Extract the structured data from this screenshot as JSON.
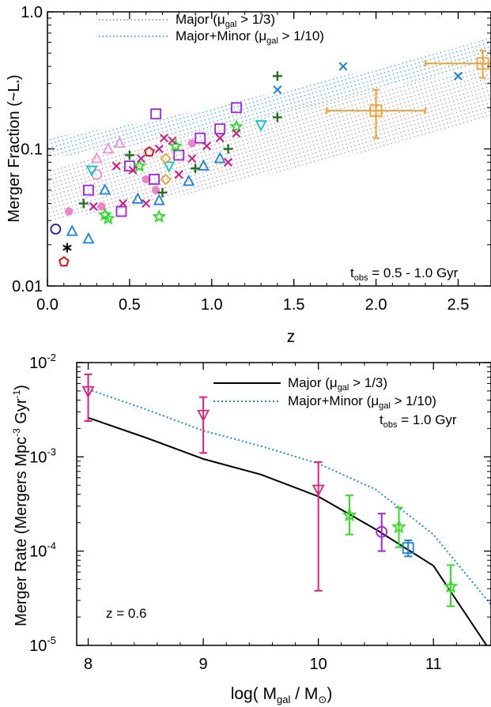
{
  "chart_data": [
    {
      "type": "scatter",
      "ylabel": "Merger Fraction (~L*)",
      "xlabel": "z",
      "yscale": "log",
      "xlim": [
        0,
        2.7
      ],
      "ylim": [
        0.01,
        1.0
      ],
      "xticks": [
        "0.0",
        "0.5",
        "1.0",
        "1.5",
        "2.0",
        "2.5"
      ],
      "yticks": [
        "0.01",
        "0.1",
        "1.0"
      ],
      "legend": [
        {
          "label": "Major (μgal > 1/3)",
          "style": "gray-dotted"
        },
        {
          "label": "Major+Minor (μgal > 1/10)",
          "style": "blue-dotted"
        }
      ],
      "legend_placement": "top-left",
      "annotation": "tobs = 0.5 - 1.0 Gyr",
      "bands": [
        {
          "name": "Major (μgal > 1/3)",
          "color": "#909090",
          "x": [
            0,
            0.5,
            1.0,
            1.5,
            2.0,
            2.5,
            2.7
          ],
          "lower": [
            0.03,
            0.037,
            0.052,
            0.072,
            0.1,
            0.145,
            0.17
          ],
          "upper": [
            0.07,
            0.1,
            0.14,
            0.2,
            0.27,
            0.36,
            0.4
          ]
        },
        {
          "name": "Major+Minor (μgal > 1/10)",
          "color": "#1f8ad6",
          "x": [
            0,
            0.5,
            1.0,
            1.5,
            2.0,
            2.5,
            2.7
          ],
          "lower": [
            0.085,
            0.105,
            0.14,
            0.19,
            0.27,
            0.37,
            0.42
          ],
          "upper": [
            0.12,
            0.15,
            0.2,
            0.28,
            0.39,
            0.55,
            0.65
          ]
        }
      ],
      "points": [
        {
          "marker": "circle",
          "color": "#1a1ab0",
          "x": 0.05,
          "y": 0.026
        },
        {
          "marker": "asterisk",
          "color": "#000000",
          "x": 0.12,
          "y": 0.019
        },
        {
          "marker": "pentagon",
          "color": "#e00000",
          "x": 0.1,
          "y": 0.015
        },
        {
          "marker": "dot",
          "color": "#f080c8",
          "x": 0.13,
          "y": 0.035
        },
        {
          "marker": "dot",
          "color": "#f080c8",
          "x": 0.33,
          "y": 0.038
        },
        {
          "marker": "dot",
          "color": "#f080c8",
          "x": 0.6,
          "y": 0.06
        },
        {
          "marker": "dot",
          "color": "#f080c8",
          "x": 0.66,
          "y": 0.05
        },
        {
          "marker": "dot",
          "color": "#f080c8",
          "x": 0.88,
          "y": 0.11
        },
        {
          "marker": "triangle-up",
          "color": "#1a7fe0",
          "x": 0.15,
          "y": 0.025
        },
        {
          "marker": "triangle-up",
          "color": "#1a7fe0",
          "x": 0.25,
          "y": 0.022
        },
        {
          "marker": "triangle-up",
          "color": "#1a7fe0",
          "x": 0.35,
          "y": 0.05
        },
        {
          "marker": "triangle-up",
          "color": "#1a7fe0",
          "x": 0.55,
          "y": 0.043
        },
        {
          "marker": "triangle-up",
          "color": "#1a7fe0",
          "x": 0.68,
          "y": 0.042
        },
        {
          "marker": "triangle-up",
          "color": "#1a7fe0",
          "x": 0.86,
          "y": 0.058
        },
        {
          "marker": "triangle-up",
          "color": "#1a7fe0",
          "x": 0.95,
          "y": 0.075
        },
        {
          "marker": "triangle-up",
          "color": "#1a7fe0",
          "x": 1.05,
          "y": 0.085
        },
        {
          "marker": "square",
          "color": "#a020f0",
          "x": 0.25,
          "y": 0.05
        },
        {
          "marker": "square",
          "color": "#a020f0",
          "x": 0.45,
          "y": 0.035
        },
        {
          "marker": "square",
          "color": "#a020f0",
          "x": 0.5,
          "y": 0.075
        },
        {
          "marker": "square",
          "color": "#a020f0",
          "x": 0.65,
          "y": 0.06
        },
        {
          "marker": "square",
          "color": "#a020f0",
          "x": 0.66,
          "y": 0.18
        },
        {
          "marker": "square",
          "color": "#a020f0",
          "x": 0.8,
          "y": 0.09
        },
        {
          "marker": "square",
          "color": "#a020f0",
          "x": 0.93,
          "y": 0.12
        },
        {
          "marker": "square",
          "color": "#a020f0",
          "x": 1.05,
          "y": 0.14
        },
        {
          "marker": "square",
          "color": "#a020f0",
          "x": 1.15,
          "y": 0.2
        },
        {
          "marker": "triangle-up-open",
          "color": "#f090d8",
          "x": 0.3,
          "y": 0.085
        },
        {
          "marker": "triangle-up-open",
          "color": "#f090d8",
          "x": 0.37,
          "y": 0.1
        },
        {
          "marker": "triangle-up-open",
          "color": "#f090d8",
          "x": 0.44,
          "y": 0.11
        },
        {
          "marker": "circle",
          "color": "#f090d8",
          "x": 0.3,
          "y": 0.065
        },
        {
          "marker": "triangle-down",
          "color": "#00c8c8",
          "x": 0.27,
          "y": 0.07
        },
        {
          "marker": "triangle-down",
          "color": "#00c8c8",
          "x": 0.74,
          "y": 0.075
        },
        {
          "marker": "triangle-down",
          "color": "#00c8c8",
          "x": 1.3,
          "y": 0.15
        },
        {
          "marker": "star",
          "color": "#22dd22",
          "x": 0.35,
          "y": 0.033
        },
        {
          "marker": "star",
          "color": "#22dd22",
          "x": 0.37,
          "y": 0.031
        },
        {
          "marker": "star",
          "color": "#22dd22",
          "x": 0.56,
          "y": 0.075
        },
        {
          "marker": "star",
          "color": "#22dd22",
          "x": 0.68,
          "y": 0.032
        },
        {
          "marker": "star",
          "color": "#22dd22",
          "x": 0.78,
          "y": 0.105
        },
        {
          "marker": "star",
          "color": "#22dd22",
          "x": 1.15,
          "y": 0.145
        },
        {
          "marker": "plus",
          "color": "#207020",
          "x": 0.5,
          "y": 0.09
        },
        {
          "marker": "plus",
          "color": "#207020",
          "x": 0.7,
          "y": 0.048
        },
        {
          "marker": "plus",
          "color": "#207020",
          "x": 0.9,
          "y": 0.072
        },
        {
          "marker": "plus",
          "color": "#207020",
          "x": 1.1,
          "y": 0.1
        },
        {
          "marker": "plus",
          "color": "#207020",
          "x": 1.4,
          "y": 0.34
        },
        {
          "marker": "plus",
          "color": "#207020",
          "x": 1.4,
          "y": 0.17
        },
        {
          "marker": "plus",
          "color": "#207020",
          "x": 0.22,
          "y": 0.04
        },
        {
          "marker": "diamond",
          "color": "#f0a030",
          "x": 0.72,
          "y": 0.085
        },
        {
          "marker": "diamond",
          "color": "#f0a030",
          "x": 0.72,
          "y": 0.06
        },
        {
          "marker": "pentagon",
          "color": "#e00000",
          "x": 0.62,
          "y": 0.095
        },
        {
          "marker": "x",
          "color": "#d01880",
          "x": 0.28,
          "y": 0.038
        },
        {
          "marker": "x",
          "color": "#d01880",
          "x": 0.42,
          "y": 0.075
        },
        {
          "marker": "x",
          "color": "#d01880",
          "x": 0.46,
          "y": 0.04
        },
        {
          "marker": "x",
          "color": "#d01880",
          "x": 0.52,
          "y": 0.07
        },
        {
          "marker": "x",
          "color": "#d01880",
          "x": 0.57,
          "y": 0.085
        },
        {
          "marker": "x",
          "color": "#d01880",
          "x": 0.6,
          "y": 0.04
        },
        {
          "marker": "x",
          "color": "#d01880",
          "x": 0.68,
          "y": 0.1
        },
        {
          "marker": "x",
          "color": "#d01880",
          "x": 0.71,
          "y": 0.12
        },
        {
          "marker": "x",
          "color": "#d01880",
          "x": 0.76,
          "y": 0.115
        },
        {
          "marker": "x",
          "color": "#d01880",
          "x": 0.8,
          "y": 0.065
        },
        {
          "marker": "x",
          "color": "#d01880",
          "x": 0.88,
          "y": 0.085
        },
        {
          "marker": "x",
          "color": "#d01880",
          "x": 0.97,
          "y": 0.105
        },
        {
          "marker": "x",
          "color": "#d01880",
          "x": 1.05,
          "y": 0.12
        },
        {
          "marker": "x",
          "color": "#d01880",
          "x": 1.1,
          "y": 0.08
        },
        {
          "marker": "x",
          "color": "#d01880",
          "x": 1.15,
          "y": 0.13
        },
        {
          "marker": "x",
          "color": "#1a7fe0",
          "x": 1.4,
          "y": 0.27
        },
        {
          "marker": "x",
          "color": "#1a7fe0",
          "x": 1.8,
          "y": 0.4
        },
        {
          "marker": "x",
          "color": "#1a7fe0",
          "x": 2.5,
          "y": 0.34
        }
      ],
      "errorbar_points": [
        {
          "marker": "square",
          "color": "#f0a030",
          "x": 2.0,
          "y": 0.19,
          "xerr": [
            1.7,
            2.3
          ],
          "yerr": [
            0.12,
            0.27
          ]
        },
        {
          "marker": "square",
          "color": "#f0a030",
          "x": 2.65,
          "y": 0.42,
          "xerr": [
            2.3,
            2.7
          ],
          "yerr": [
            0.33,
            0.52
          ]
        }
      ]
    },
    {
      "type": "line",
      "ylabel": "Merger Rate (Mergers Mpc-3 Gyr-1)",
      "xlabel": "log( Mgal / M⊙)",
      "yscale": "log",
      "xlim": [
        7.9,
        11.5
      ],
      "ylim": [
        1e-05,
        0.01
      ],
      "xticks": [
        "8",
        "9",
        "10",
        "11"
      ],
      "legend": [
        {
          "label": "Major (μgal > 1/3)",
          "style": "black-solid"
        },
        {
          "label": "Major+Minor (μgal > 1/10)",
          "style": "blue-dotted"
        }
      ],
      "legend_placement": "top-right",
      "annotations": [
        "tobs = 1.0 Gyr",
        "z = 0.6"
      ],
      "series": [
        {
          "name": "Major (μgal > 1/3)",
          "color": "#000000",
          "dash": "solid",
          "x": [
            8.0,
            8.5,
            9.0,
            9.5,
            10.0,
            10.5,
            11.0,
            11.5
          ],
          "y": [
            0.0026,
            0.0016,
            0.00095,
            0.00065,
            0.00038,
            0.00017,
            7e-05,
            8.5e-06
          ]
        },
        {
          "name": "Major+Minor (μgal > 1/10)",
          "color": "#1f8ad6",
          "dash": "dotted",
          "x": [
            8.0,
            8.5,
            9.0,
            9.5,
            10.0,
            10.5,
            11.0,
            11.5
          ],
          "y": [
            0.0052,
            0.0032,
            0.0019,
            0.0013,
            0.00085,
            0.00045,
            0.00015,
            2.7e-05
          ]
        }
      ],
      "data_points": [
        {
          "marker": "triangle-down",
          "color": "#e0207c",
          "x": 8.0,
          "y": 0.005,
          "yerr": [
            0.0024,
            0.0075
          ]
        },
        {
          "marker": "triangle-down",
          "color": "#e0207c",
          "x": 9.0,
          "y": 0.0028,
          "yerr": [
            0.0011,
            0.0043
          ]
        },
        {
          "marker": "triangle-down",
          "color": "#e0207c",
          "x": 10.0,
          "y": 0.00045,
          "yerr": [
            3.8e-05,
            0.00088
          ]
        },
        {
          "marker": "star",
          "color": "#33dd22",
          "x": 10.27,
          "y": 0.00024,
          "yerr": [
            0.00015,
            0.00039
          ]
        },
        {
          "marker": "circle",
          "color": "#a020f0",
          "x": 10.55,
          "y": 0.00016,
          "yerr": [
            0.0001,
            0.00025
          ]
        },
        {
          "marker": "star",
          "color": "#33dd22",
          "x": 10.7,
          "y": 0.00018,
          "yerr": [
            0.00011,
            0.00029
          ]
        },
        {
          "marker": "square",
          "color": "#1a7fe0",
          "x": 10.78,
          "y": 0.000108,
          "yerr": [
            8.8e-05,
            0.00013
          ]
        },
        {
          "marker": "star",
          "color": "#33dd22",
          "x": 11.15,
          "y": 4.2e-05,
          "yerr": [
            2.6e-05,
            7.1e-05
          ]
        }
      ]
    }
  ]
}
